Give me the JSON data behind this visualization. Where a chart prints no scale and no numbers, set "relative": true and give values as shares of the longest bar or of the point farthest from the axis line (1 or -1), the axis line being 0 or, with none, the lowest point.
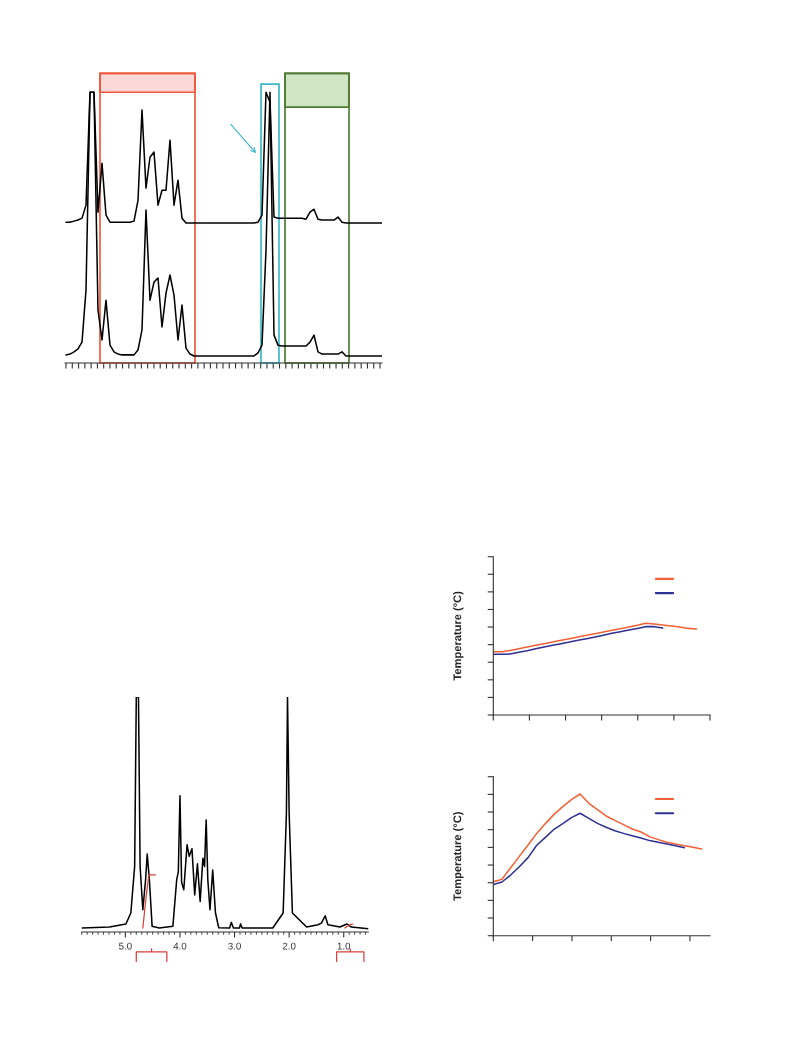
{
  "chart_data": [
    {
      "type": "line",
      "relative": true,
      "tick_labels": false,
      "categories": [
        null,
        null,
        null,
        null,
        null,
        null,
        null,
        null,
        null,
        null,
        null,
        null,
        null,
        null,
        null,
        null,
        null,
        null,
        null,
        null,
        null,
        null,
        null,
        null,
        null,
        null,
        null,
        null,
        null,
        null,
        null,
        null,
        null,
        null,
        null,
        null,
        null,
        null,
        null,
        null,
        null,
        null,
        null,
        null,
        null,
        null,
        null,
        null,
        null,
        null,
        null,
        null,
        null,
        null,
        null,
        null,
        null,
        null,
        null,
        null,
        null,
        null,
        null,
        null,
        null,
        null,
        null,
        null,
        null,
        null,
        null,
        null,
        null,
        null,
        null,
        null,
        null,
        null,
        null,
        null
      ],
      "series": [
        {
          "color": "#000000",
          "values": [
            0.52,
            0.52,
            0.524,
            0.528,
            0.535,
            0.583,
            1.0,
            1.0,
            0.557,
            0.738,
            0.546,
            0.52,
            0.52,
            0.52,
            0.52,
            0.52,
            0.52,
            0.524,
            0.601,
            0.934,
            0.646,
            0.76,
            0.779,
            0.583,
            0.638,
            0.638,
            0.823,
            0.583,
            0.675,
            0.535,
            0.517,
            0.517,
            0.517,
            0.517,
            0.517,
            0.517,
            0.517,
            0.517,
            0.517,
            0.517,
            0.517,
            0.517,
            0.517,
            0.517,
            0.517,
            0.517,
            0.517,
            0.517,
            0.52,
            0.546,
            1.0,
            0.963,
            0.539,
            0.535,
            0.535,
            0.535,
            0.535,
            0.535,
            0.535,
            0.535,
            0.531,
            0.557,
            0.568,
            0.531,
            0.528,
            0.528,
            0.528,
            0.528,
            0.539,
            0.52,
            0.517,
            0.517,
            0.517,
            0.517,
            0.517,
            0.517,
            0.517,
            0.517,
            0.517,
            0.517
          ]
        },
        {
          "color": "#000000",
          "values": [
            0.03,
            0.033,
            0.041,
            0.052,
            0.077,
            0.269,
            1.0,
            1.0,
            0.196,
            0.085,
            0.232,
            0.066,
            0.041,
            0.033,
            0.03,
            0.03,
            0.03,
            0.03,
            0.048,
            0.122,
            0.565,
            0.232,
            0.299,
            0.314,
            0.133,
            0.258,
            0.325,
            0.251,
            0.085,
            0.214,
            0.055,
            0.033,
            0.026,
            0.026,
            0.026,
            0.026,
            0.026,
            0.026,
            0.026,
            0.026,
            0.026,
            0.026,
            0.026,
            0.026,
            0.026,
            0.026,
            0.026,
            0.026,
            0.037,
            0.066,
            0.417,
            1.0,
            0.103,
            0.066,
            0.063,
            0.063,
            0.063,
            0.063,
            0.063,
            0.063,
            0.063,
            0.077,
            0.103,
            0.041,
            0.033,
            0.033,
            0.033,
            0.033,
            0.033,
            0.041,
            0.026,
            0.026,
            0.026,
            0.026,
            0.026,
            0.026,
            0.026,
            0.026,
            0.026,
            0.026
          ]
        }
      ]
    },
    {
      "type": "line",
      "relative": true,
      "tick_labels": false,
      "ylabel": "Temperature (°C)",
      "categories": [
        null,
        null,
        null,
        null,
        null,
        null,
        null,
        null,
        null,
        null,
        null,
        null,
        null,
        null,
        null,
        null,
        null,
        null,
        null,
        null,
        null,
        null,
        null,
        null,
        null
      ],
      "series": [
        {
          "color": "#f26236",
          "values": [
            0.691,
            0.691,
            0.705,
            0.724,
            0.742,
            0.76,
            0.778,
            0.796,
            0.815,
            0.833,
            0.851,
            0.869,
            0.887,
            0.905,
            0.924,
            0.942,
            0.96,
            0.978,
            1.0,
            0.993,
            0.982,
            0.971,
            0.96,
            0.945,
            0.938
          ]
        },
        {
          "color": "#2e3192",
          "values": [
            0.662,
            0.662,
            0.665,
            0.684,
            0.702,
            0.724,
            0.742,
            0.76,
            0.778,
            0.796,
            0.815,
            0.833,
            0.851,
            0.869,
            0.891,
            0.909,
            0.927,
            0.945,
            0.964,
            0.964,
            0.949,
            null,
            null,
            null,
            null
          ]
        }
      ]
    },
    {
      "type": "line",
      "relative": true,
      "tick_labels": "x",
      "xlim": [
        5.8,
        0.55
      ],
      "xticks": [
        {
          "value": 5,
          "label": "5.0"
        },
        {
          "value": 4,
          "label": "4.0"
        },
        {
          "value": 3,
          "label": "3.0"
        },
        {
          "value": 2,
          "label": "2.0"
        },
        {
          "value": 1,
          "label": "1.0"
        }
      ],
      "series": [
        {
          "color": "#000000",
          "x": [
            5.8,
            5.29,
            4.99,
            4.9,
            4.83,
            4.8,
            4.76,
            4.73,
            4.68,
            4.63,
            4.6,
            4.56,
            4.51,
            4.38,
            4.13,
            4.06,
            4.03,
            4.0,
            3.97,
            3.93,
            3.87,
            3.83,
            3.78,
            3.73,
            3.68,
            3.63,
            3.58,
            3.55,
            3.52,
            3.49,
            3.45,
            3.4,
            3.35,
            3.29,
            3.09,
            3.06,
            3.02,
            2.91,
            2.89,
            2.86,
            2.3,
            2.11,
            2.05,
            2.03,
            2.0,
            1.94,
            1.68,
            1.47,
            1.41,
            1.34,
            1.29,
            1.07,
            0.94,
            0.86,
            0.55
          ],
          "values": [
            0.017,
            0.021,
            0.034,
            0.081,
            0.279,
            1.0,
            1.0,
            0.279,
            0.095,
            0.222,
            0.332,
            0.222,
            0.024,
            0.017,
            0.024,
            0.222,
            0.257,
            0.58,
            0.212,
            0.18,
            0.371,
            0.322,
            0.354,
            0.158,
            0.29,
            0.13,
            0.314,
            0.279,
            0.477,
            0.223,
            0.095,
            0.264,
            0.082,
            0.018,
            0.017,
            0.041,
            0.017,
            0.017,
            0.034,
            0.017,
            0.017,
            0.081,
            0.505,
            1.0,
            0.505,
            0.081,
            0.021,
            0.031,
            0.038,
            0.069,
            0.031,
            0.021,
            0.034,
            0.021,
            0.014
          ]
        }
      ]
    },
    {
      "type": "line",
      "relative": true,
      "tick_labels": false,
      "ylabel": "Temperature (°C)",
      "categories": [
        null,
        null,
        null,
        null,
        null,
        null,
        null,
        null,
        null,
        null,
        null,
        null,
        null,
        null,
        null,
        null,
        null,
        null,
        null,
        null,
        null,
        null,
        null,
        null,
        null
      ],
      "series": [
        {
          "color": "#f26236",
          "values": [
            0.381,
            0.398,
            0.48,
            0.56,
            0.64,
            0.722,
            0.791,
            0.856,
            0.911,
            0.96,
            1.0,
            0.934,
            0.889,
            0.845,
            0.814,
            0.784,
            0.753,
            0.732,
            0.699,
            0.678,
            0.659,
            0.647,
            0.635,
            0.624,
            0.612
          ]
        },
        {
          "color": "#2e3192",
          "values": [
            0.362,
            0.379,
            0.428,
            0.487,
            0.551,
            0.638,
            0.694,
            0.751,
            0.791,
            0.833,
            0.864,
            0.828,
            0.793,
            0.765,
            0.741,
            0.722,
            0.706,
            0.689,
            0.671,
            0.659,
            0.647,
            0.635,
            0.621,
            null,
            null
          ]
        }
      ]
    }
  ]
}
